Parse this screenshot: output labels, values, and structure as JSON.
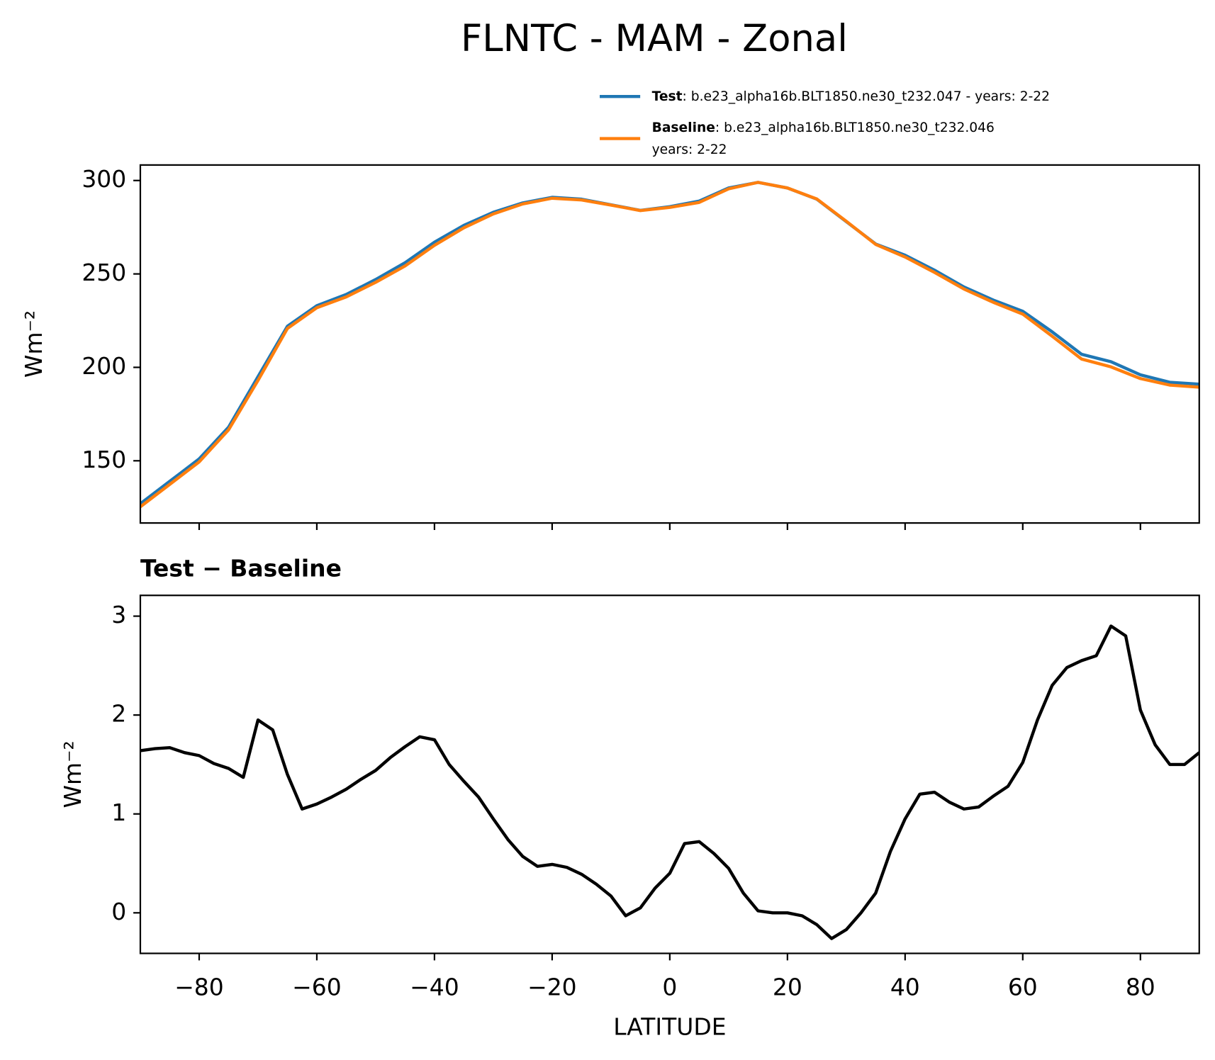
{
  "chart_data": [
    {
      "type": "line",
      "title": "FLNTC - MAM - Zonal",
      "ylabel": "Wm⁻²",
      "x": [
        -90,
        -85,
        -80,
        -75,
        -70,
        -65,
        -60,
        -55,
        -50,
        -45,
        -40,
        -35,
        -30,
        -25,
        -20,
        -15,
        -10,
        -5,
        0,
        5,
        10,
        15,
        20,
        25,
        30,
        35,
        40,
        45,
        50,
        55,
        60,
        65,
        70,
        75,
        80,
        85,
        90
      ],
      "series": [
        {
          "name": "Test",
          "label": ": b.e23_alpha16b.BLT1850.ne30_t232.047 - years: 2-22",
          "color": "#1f77b4",
          "values": [
            127,
            139,
            151,
            168,
            195,
            222,
            233,
            239,
            247,
            256,
            267,
            276,
            283,
            288,
            291,
            290,
            287,
            284,
            286,
            289,
            296,
            299,
            296,
            290,
            278,
            266,
            260,
            252,
            243,
            236,
            230,
            219,
            207,
            203,
            196,
            192,
            191
          ]
        },
        {
          "name": "Baseline",
          "label": ": b.e23_alpha16b.BLT1850.ne30_t232.046\nyears: 2-22",
          "color": "#ff7f0e",
          "values": [
            125.35,
            137.35,
            149.42,
            166.58,
            193,
            220.8,
            231.9,
            237.7,
            245.5,
            254.25,
            265.3,
            274.7,
            282.1,
            287.45,
            290.51,
            289.6,
            286.85,
            283.9,
            285.6,
            288.28,
            295.55,
            299,
            296,
            290.1,
            278.2,
            265.8,
            259.05,
            250.8,
            241.95,
            234.8,
            228.5,
            216.65,
            204.45,
            200.25,
            194,
            190.5,
            189.4
          ]
        }
      ],
      "xlim": [
        -90,
        90
      ],
      "ylim": [
        116.7,
        308.3
      ],
      "xticks": [
        -80,
        -60,
        -40,
        -20,
        0,
        20,
        40,
        60,
        80
      ],
      "yticks": [
        150,
        200,
        250,
        300
      ]
    },
    {
      "type": "line",
      "title": "Test − Baseline",
      "xlabel": "LATITUDE",
      "ylabel": "Wm⁻²",
      "x": [
        -90,
        -87.5,
        -85,
        -82.5,
        -80,
        -77.5,
        -75,
        -72.5,
        -70,
        -67.5,
        -65,
        -62.5,
        -60,
        -57.5,
        -55,
        -52.5,
        -50,
        -47.5,
        -45,
        -42.5,
        -40,
        -37.5,
        -35,
        -32.5,
        -30,
        -27.5,
        -25,
        -22.5,
        -20,
        -17.5,
        -15,
        -12.5,
        -10,
        -7.5,
        -5,
        -2.5,
        0,
        2.5,
        5,
        7.5,
        10,
        12.5,
        15,
        17.5,
        20,
        22.5,
        25,
        27.5,
        30,
        32.5,
        35,
        37.5,
        40,
        42.5,
        45,
        47.5,
        50,
        52.5,
        55,
        57.5,
        60,
        62.5,
        65,
        67.5,
        70,
        72.5,
        75,
        77.5,
        80,
        82.5,
        85,
        87.5,
        90
      ],
      "series": [
        {
          "name": "Test − Baseline",
          "color": "#000000",
          "values": [
            1.64,
            1.66,
            1.67,
            1.62,
            1.59,
            1.51,
            1.46,
            1.37,
            1.95,
            1.85,
            1.4,
            1.05,
            1.1,
            1.17,
            1.25,
            1.35,
            1.44,
            1.57,
            1.68,
            1.78,
            1.75,
            1.5,
            1.33,
            1.17,
            0.95,
            0.74,
            0.57,
            0.47,
            0.49,
            0.46,
            0.39,
            0.29,
            0.17,
            -0.03,
            0.05,
            0.25,
            0.4,
            0.7,
            0.72,
            0.6,
            0.45,
            0.2,
            0.02,
            0,
            0,
            -0.03,
            -0.12,
            -0.26,
            -0.17,
            0,
            0.2,
            0.62,
            0.95,
            1.2,
            1.22,
            1.12,
            1.05,
            1.07,
            1.18,
            1.28,
            1.52,
            1.95,
            2.3,
            2.48,
            2.55,
            2.6,
            2.9,
            2.8,
            2.05,
            1.7,
            1.5,
            1.5,
            1.62
          ]
        }
      ],
      "xlim": [
        -90,
        90
      ],
      "ylim": [
        -0.41,
        3.21
      ],
      "xticks": [
        {
          "value": -80,
          "label": "−80"
        },
        {
          "value": -60,
          "label": "−60"
        },
        {
          "value": -40,
          "label": "−40"
        },
        {
          "value": -20,
          "label": "−20"
        },
        0,
        20,
        40,
        60,
        80
      ],
      "yticks": [
        0,
        1,
        2,
        3
      ]
    }
  ]
}
